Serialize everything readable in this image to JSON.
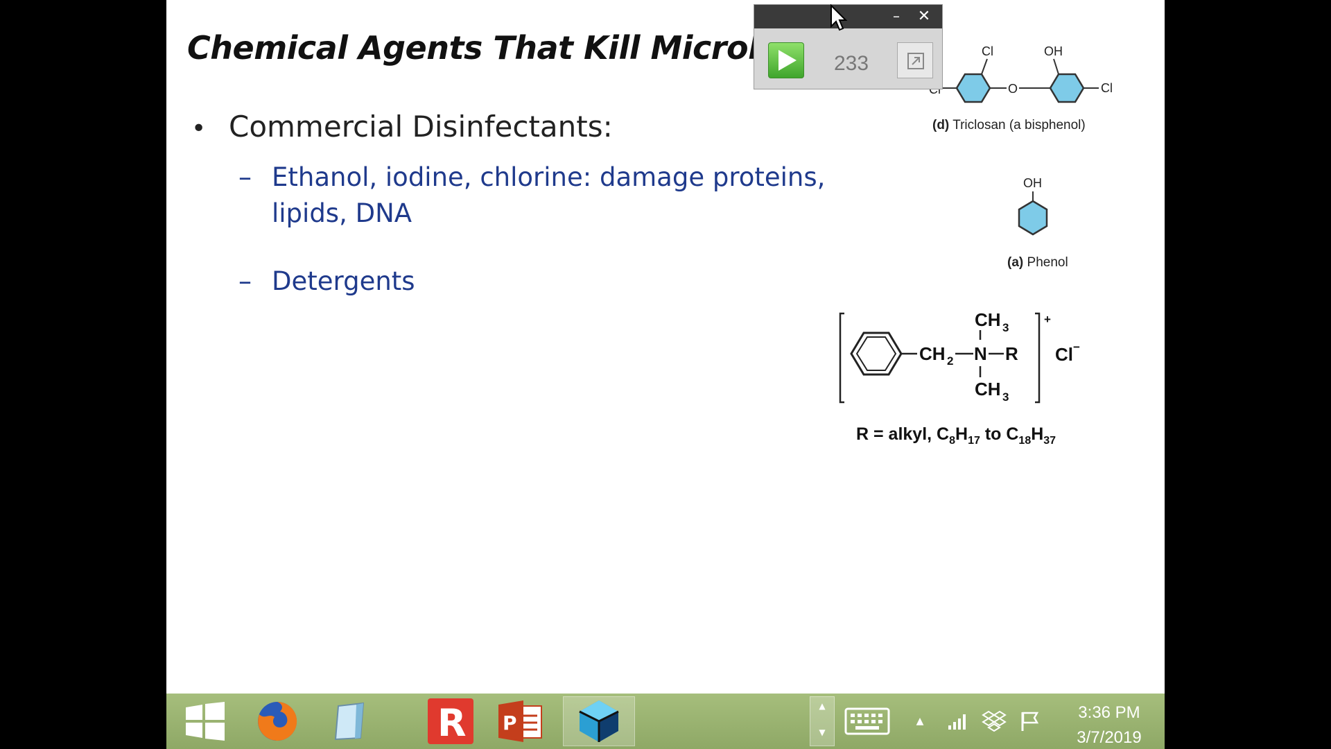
{
  "slide": {
    "title": "Chemical Agents That Kill Microbe",
    "bullet": "Commercial Disinfectants:",
    "bullet_symbol": "•",
    "sub_dash": "–",
    "subitems": [
      "Ethanol, iodine, chlorine: damage proteins, lipids, DNA",
      "Detergents"
    ]
  },
  "figures": {
    "triclosan": {
      "caption_letter": "(d)",
      "caption_text": "Triclosan (a bisphenol)",
      "atoms": {
        "cl_top": "Cl",
        "oh": "OH",
        "cl_left": "Cl",
        "o_bridge": "O",
        "cl_right": "Cl"
      }
    },
    "phenol": {
      "caption_letter": "(a)",
      "caption_text": "Phenol",
      "atoms": {
        "oh": "OH"
      }
    },
    "quat": {
      "ch3": "CH",
      "three": "3",
      "ch2": "CH",
      "two": "2",
      "n": "N",
      "r": "R",
      "plus": "+",
      "chloride": "Cl",
      "minus": "−",
      "formula": {
        "prefix": "R = alkyl, C",
        "s1": "8",
        "h1": "H",
        "s2": "17",
        "mid": " to C",
        "s3": "18",
        "h2": "H",
        "s4": "37"
      }
    }
  },
  "player": {
    "minimize": "–",
    "close": "✕",
    "counter": "233",
    "play_icon": "play-icon",
    "restore_icon": "restore-icon",
    "play_color": "#5cc23f"
  },
  "taskbar": {
    "apps": [
      "windows-start-icon",
      "firefox-icon",
      "notepad-icon",
      "r-app-icon",
      "powerpoint-icon",
      "recorder-app-icon"
    ],
    "scroll_up": "▲",
    "scroll_down": "▼",
    "tray_up": "▲",
    "clock_time": "3:36 PM",
    "clock_date": "3/7/2019",
    "background": "#9cb472"
  },
  "colors": {
    "title": "#111111",
    "subitem_text": "#1f3a8c",
    "ring_fill": "#7ecbe8"
  }
}
